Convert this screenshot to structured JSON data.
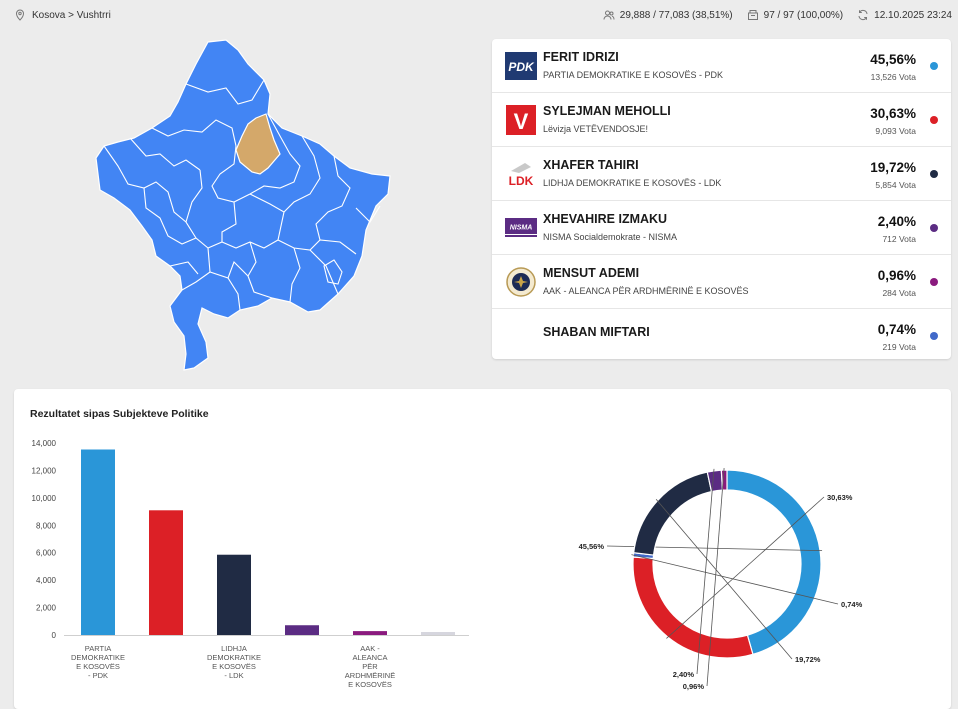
{
  "breadcrumb": "Kosova > Vushtrri",
  "stats": {
    "turnout": "29,888 / 77,083 (38,51%)",
    "stations": "97 / 97 (100,00%)",
    "updated": "12.10.2025 23:24"
  },
  "colors": {
    "map_fill": "#4285f4",
    "map_highlight": "#d4a86a"
  },
  "candidates": [
    {
      "name": "FERIT IDRIZI",
      "party": "PARTIA DEMOKRATIKE E KOSOVËS - PDK",
      "pct": "45,56%",
      "votes": "13,526 Vota",
      "color": "#2a96d8",
      "logo": "PDK"
    },
    {
      "name": "SYLEJMAN MEHOLLI",
      "party": "Lëvizja VETËVENDOSJE!",
      "pct": "30,63%",
      "votes": "9,093 Vota",
      "color": "#dc2026",
      "logo": "V"
    },
    {
      "name": "XHAFER TAHIRI",
      "party": "LIDHJA DEMOKRATIKE E KOSOVËS - LDK",
      "pct": "19,72%",
      "votes": "5,854 Vota",
      "color": "#202b44",
      "logo": "LDK"
    },
    {
      "name": "XHEVAHIRE IZMAKU",
      "party": "NISMA Socialdemokrate - NISMA",
      "pct": "2,40%",
      "votes": "712 Vota",
      "color": "#5b2c83",
      "logo": "NISMA"
    },
    {
      "name": "MENSUT ADEMI",
      "party": "AAK - ALEANCA PËR ARDHMËRINË E KOSOVËS",
      "pct": "0,96%",
      "votes": "284 Vota",
      "color": "#8a1a7e",
      "logo": "AAK"
    },
    {
      "name": "SHABAN MIFTARI",
      "party": "",
      "pct": "0,74%",
      "votes": "219 Vota",
      "color": "#4169c9",
      "logo": ""
    }
  ],
  "chart_title": "Rezultatet sipas Subjekteve Politike",
  "chart_data": [
    {
      "type": "bar",
      "title": "Rezultatet sipas Subjekteve Politike",
      "categories": [
        [
          "PARTIA",
          "DEMOKRATIKE",
          "E KOSOVËS",
          "- PDK"
        ],
        [],
        [
          "LIDHJA",
          "DEMOKRATIKE",
          "E KOSOVËS",
          "- LDK"
        ],
        [],
        [
          "AAK -",
          "ALEANCA",
          "PËR",
          "ARDHMËRINË",
          "E KOSOVËS"
        ],
        []
      ],
      "values": [
        13526,
        9093,
        5854,
        712,
        284,
        219
      ],
      "colors": [
        "#2a96d8",
        "#dc2026",
        "#202b44",
        "#5b2c83",
        "#8a1a7e",
        "#d6d6de"
      ],
      "ylim": [
        0,
        14000
      ],
      "yticks": [
        "0",
        "2,000",
        "4,000",
        "6,000",
        "8,000",
        "10,000",
        "12,000",
        "14,000"
      ]
    },
    {
      "type": "pie",
      "values": [
        45.56,
        30.63,
        0.74,
        19.72,
        2.4,
        0.96
      ],
      "labels": [
        "45,56%",
        "30,63%",
        "0,74%",
        "19,72%",
        "2,40%",
        "0,96%"
      ],
      "colors": [
        "#2a96d8",
        "#dc2026",
        "#4169c9",
        "#202b44",
        "#5b2c83",
        "#8a1a7e"
      ]
    }
  ]
}
